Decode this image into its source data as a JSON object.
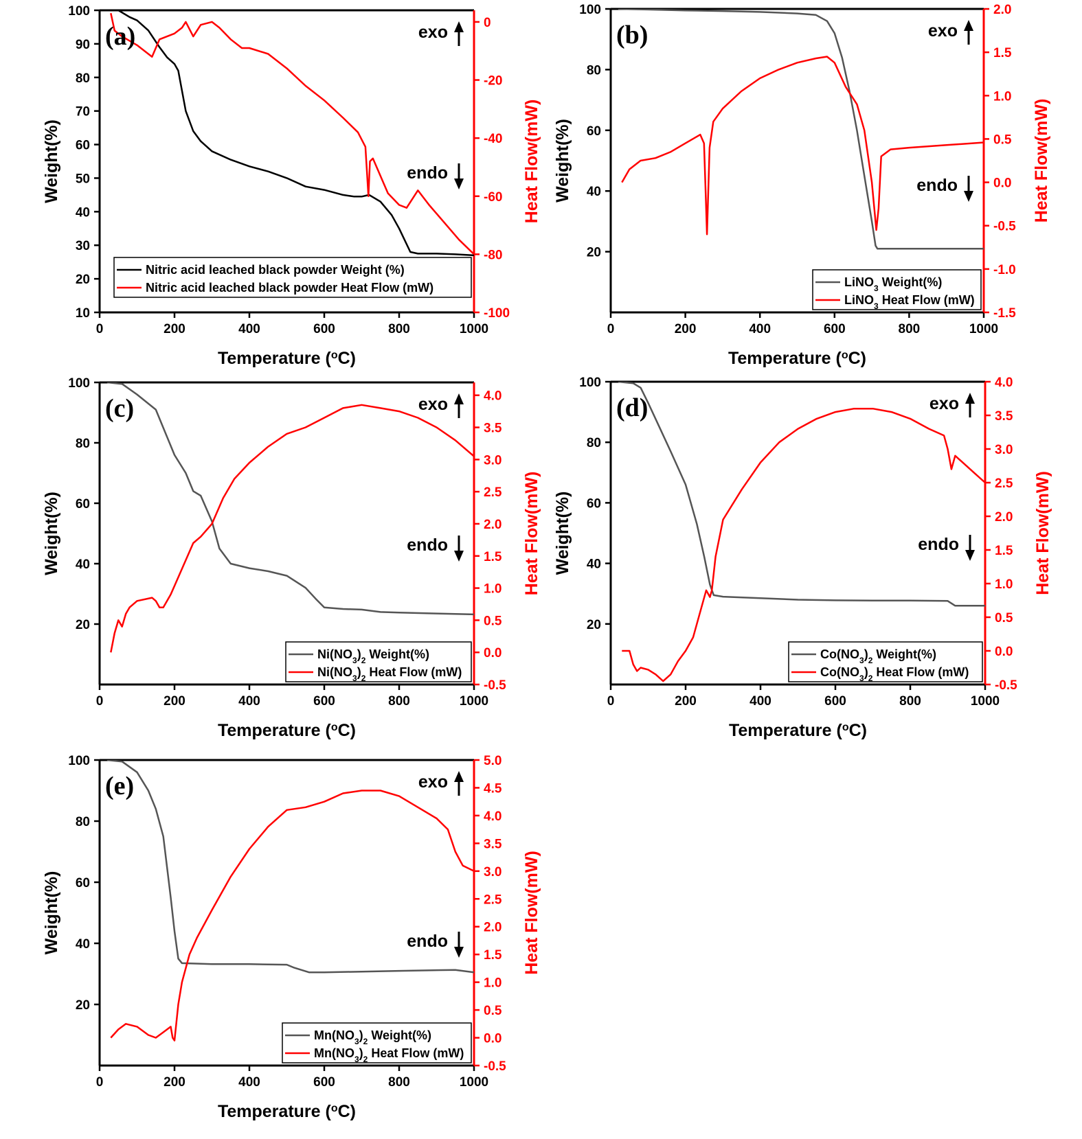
{
  "chart_data": [
    {
      "type": "line",
      "panel_label": "(a)",
      "xlabel": "Temperature (°C)",
      "ylabel": "Weight(%)",
      "y2label": "Heat Flow(mW)",
      "xlim": [
        0,
        1000
      ],
      "ylim": [
        10,
        100
      ],
      "y2lim": [
        -100,
        4
      ],
      "xticks": [
        0,
        200,
        400,
        600,
        800,
        1000
      ],
      "yticks": [
        10,
        20,
        30,
        40,
        50,
        60,
        70,
        80,
        90,
        100
      ],
      "y2ticks": [
        0,
        -20,
        -40,
        -60,
        -80,
        -100
      ],
      "annotations": [
        "exo",
        "endo"
      ],
      "legend_position": "bottom-right",
      "series": [
        {
          "name": "Nitric acid leached black powder Weight (%)",
          "axis": "left",
          "color": "#000000",
          "x": [
            30,
            50,
            80,
            100,
            130,
            160,
            180,
            200,
            210,
            230,
            250,
            270,
            300,
            350,
            400,
            450,
            500,
            550,
            600,
            650,
            680,
            700,
            720,
            750,
            780,
            800,
            830,
            850,
            900,
            950,
            1000
          ],
          "y": [
            100,
            100,
            98,
            97,
            94,
            89,
            86,
            84,
            82,
            70,
            64,
            61,
            58,
            55.5,
            53.5,
            52,
            50,
            47.5,
            46.5,
            45,
            44.5,
            44.5,
            45,
            43,
            39,
            35,
            28,
            27.5,
            27.5,
            27.3,
            27
          ]
        },
        {
          "name": "Nitric acid leached black powder Heat Flow (mW)",
          "axis": "right",
          "color": "#ff0000",
          "x": [
            30,
            40,
            60,
            100,
            140,
            160,
            200,
            220,
            230,
            250,
            270,
            300,
            320,
            350,
            380,
            400,
            450,
            500,
            550,
            600,
            650,
            690,
            710,
            718,
            722,
            730,
            750,
            770,
            800,
            820,
            850,
            880,
            920,
            960,
            1000
          ],
          "y": [
            3,
            -3,
            -5,
            -8,
            -12,
            -6,
            -4,
            -2,
            0,
            -5,
            -1,
            0,
            -2,
            -6,
            -9,
            -9,
            -11,
            -16,
            -22,
            -27,
            -33,
            -38,
            -43,
            -60,
            -48,
            -47,
            -53,
            -59,
            -63,
            -64,
            -58,
            -63,
            -69,
            -75,
            -80
          ]
        }
      ]
    },
    {
      "type": "line",
      "panel_label": "(b)",
      "xlabel": "Temperature (°C)",
      "ylabel": "Weight(%)",
      "y2label": "Heat Flow(mW)",
      "xlim": [
        0,
        1000
      ],
      "ylim": [
        0,
        100
      ],
      "y2lim": [
        -1.5,
        2.0
      ],
      "xticks": [
        0,
        200,
        400,
        600,
        800,
        1000
      ],
      "yticks": [
        20,
        40,
        60,
        80,
        100
      ],
      "y2ticks": [
        -1.5,
        -1.0,
        -0.5,
        0.0,
        0.5,
        1.0,
        1.5,
        2.0
      ],
      "annotations": [
        "exo",
        "endo"
      ],
      "legend_position": "bottom-right",
      "series": [
        {
          "name": "LiNO3 Weight(%)",
          "name_main": "LiNO",
          "name_sub": "3",
          "name_tail": " Weight(%)",
          "axis": "left",
          "color": "#555555",
          "x": [
            20,
            100,
            200,
            300,
            400,
            500,
            550,
            580,
            600,
            620,
            640,
            660,
            680,
            700,
            710,
            715,
            720,
            800,
            900,
            1000
          ],
          "y": [
            100,
            99.8,
            99.5,
            99.3,
            99,
            98.5,
            98,
            96,
            92,
            84,
            73,
            60,
            45,
            30,
            22,
            21,
            21,
            21,
            21,
            21
          ]
        },
        {
          "name": "LiNO3 Heat Flow (mW)",
          "name_main": "LiNO",
          "name_sub": "3",
          "name_tail": " Heat Flow (mW)",
          "axis": "right",
          "color": "#ff0000",
          "x": [
            30,
            50,
            80,
            120,
            160,
            200,
            240,
            250,
            255,
            258,
            265,
            275,
            300,
            350,
            400,
            450,
            500,
            550,
            580,
            600,
            630,
            660,
            680,
            700,
            712,
            718,
            725,
            750,
            800,
            900,
            1000
          ],
          "y": [
            0,
            0.15,
            0.25,
            0.28,
            0.35,
            0.45,
            0.55,
            0.45,
            -0.2,
            -0.6,
            0.4,
            0.7,
            0.85,
            1.05,
            1.2,
            1.3,
            1.38,
            1.43,
            1.45,
            1.38,
            1.1,
            0.9,
            0.6,
            0.0,
            -0.55,
            -0.3,
            0.3,
            0.38,
            0.4,
            0.43,
            0.46
          ]
        }
      ]
    },
    {
      "type": "line",
      "panel_label": "(c)",
      "xlabel": "Temperature (°C)",
      "ylabel": "Weight(%)",
      "y2label": "Heat Flow(mW)",
      "xlim": [
        0,
        1000
      ],
      "ylim": [
        0,
        100
      ],
      "y2lim": [
        -0.5,
        4.2
      ],
      "xticks": [
        0,
        200,
        400,
        600,
        800,
        1000
      ],
      "yticks": [
        20,
        40,
        60,
        80,
        100
      ],
      "y2ticks": [
        -0.5,
        0.0,
        0.5,
        1.0,
        1.5,
        2.0,
        2.5,
        3.0,
        3.5,
        4.0
      ],
      "annotations": [
        "exo",
        "endo"
      ],
      "legend_position": "bottom-right",
      "series": [
        {
          "name": "Ni(NO3)2 Weight(%)",
          "name_main": "Ni(NO",
          "name_sub": "3",
          "name_mid": ")",
          "name_sub2": "2",
          "name_tail": " Weight(%)",
          "axis": "left",
          "color": "#555555",
          "x": [
            20,
            60,
            100,
            150,
            180,
            200,
            230,
            250,
            270,
            300,
            320,
            350,
            400,
            450,
            500,
            550,
            580,
            600,
            650,
            700,
            750,
            800,
            900,
            1000
          ],
          "y": [
            100,
            99.5,
            96,
            91,
            82,
            76,
            70,
            64,
            62.5,
            54,
            45,
            40,
            38.5,
            37.5,
            36,
            32,
            28,
            25.5,
            25,
            24.8,
            24,
            23.8,
            23.5,
            23.2
          ]
        },
        {
          "name": "Ni(NO3)2 Heat Flow (mW)",
          "name_main": "Ni(NO",
          "name_sub": "3",
          "name_mid": ")",
          "name_sub2": "2",
          "name_tail": " Heat Flow (mW)",
          "axis": "right",
          "color": "#ff0000",
          "x": [
            30,
            40,
            50,
            60,
            70,
            80,
            100,
            140,
            150,
            160,
            170,
            190,
            220,
            250,
            270,
            300,
            330,
            360,
            400,
            450,
            500,
            550,
            600,
            650,
            700,
            750,
            800,
            850,
            900,
            950,
            1000
          ],
          "y": [
            0.0,
            0.3,
            0.5,
            0.4,
            0.6,
            0.7,
            0.8,
            0.85,
            0.8,
            0.7,
            0.7,
            0.9,
            1.3,
            1.7,
            1.8,
            2.0,
            2.4,
            2.7,
            2.95,
            3.2,
            3.4,
            3.5,
            3.65,
            3.8,
            3.85,
            3.8,
            3.75,
            3.65,
            3.5,
            3.3,
            3.05
          ]
        }
      ]
    },
    {
      "type": "line",
      "panel_label": "(d)",
      "xlabel": "Temperature (°C)",
      "ylabel": "Weight(%)",
      "y2label": "Heat Flow(mW)",
      "xlim": [
        0,
        1000
      ],
      "ylim": [
        0,
        100
      ],
      "y2lim": [
        -0.5,
        4.0
      ],
      "xticks": [
        0,
        200,
        400,
        600,
        800,
        1000
      ],
      "yticks": [
        20,
        40,
        60,
        80,
        100
      ],
      "y2ticks": [
        -0.5,
        0.0,
        0.5,
        1.0,
        1.5,
        2.0,
        2.5,
        3.0,
        3.5,
        4.0
      ],
      "annotations": [
        "exo",
        "endo"
      ],
      "legend_position": "bottom-right",
      "series": [
        {
          "name": "Co(NO3)2 Weight(%)",
          "name_main": "Co(NO",
          "name_sub": "3",
          "name_mid": ")",
          "name_sub2": "2",
          "name_tail": " Weight(%)",
          "axis": "left",
          "color": "#555555",
          "x": [
            20,
            60,
            80,
            100,
            130,
            160,
            200,
            230,
            250,
            265,
            275,
            300,
            400,
            500,
            600,
            700,
            800,
            900,
            920,
            950,
            1000
          ],
          "y": [
            100,
            99.5,
            98,
            93,
            85,
            77,
            66,
            53,
            42,
            33,
            29.5,
            29,
            28.5,
            28,
            27.8,
            27.7,
            27.7,
            27.6,
            26,
            26,
            26
          ]
        },
        {
          "name": "Co(NO3)2 Heat Flow (mW)",
          "name_main": "Co(NO",
          "name_sub": "3",
          "name_mid": ")",
          "name_sub2": "2",
          "name_tail": " Heat Flow (mW)",
          "axis": "right",
          "color": "#ff0000",
          "x": [
            30,
            50,
            60,
            70,
            80,
            100,
            120,
            140,
            160,
            180,
            200,
            220,
            240,
            255,
            265,
            270,
            280,
            300,
            350,
            400,
            450,
            500,
            550,
            600,
            650,
            700,
            750,
            800,
            850,
            890,
            900,
            910,
            920,
            940,
            970,
            1000
          ],
          "y": [
            0.0,
            0.0,
            -0.2,
            -0.3,
            -0.25,
            -0.28,
            -0.35,
            -0.45,
            -0.35,
            -0.15,
            0.0,
            0.2,
            0.6,
            0.9,
            0.8,
            0.9,
            1.4,
            1.95,
            2.4,
            2.8,
            3.1,
            3.3,
            3.45,
            3.55,
            3.6,
            3.6,
            3.55,
            3.45,
            3.3,
            3.2,
            3.0,
            2.7,
            2.9,
            2.8,
            2.65,
            2.5
          ]
        }
      ]
    },
    {
      "type": "line",
      "panel_label": "(e)",
      "xlabel": "Temperature (°C)",
      "ylabel": "Weight(%)",
      "y2label": "Heat Flow(mW)",
      "xlim": [
        0,
        1000
      ],
      "ylim": [
        0,
        100
      ],
      "y2lim": [
        -0.5,
        5.0
      ],
      "xticks": [
        0,
        200,
        400,
        600,
        800,
        1000
      ],
      "yticks": [
        20,
        40,
        60,
        80,
        100
      ],
      "y2ticks": [
        -0.5,
        0.0,
        0.5,
        1.0,
        1.5,
        2.0,
        2.5,
        3.0,
        3.5,
        4.0,
        4.5,
        5.0
      ],
      "annotations": [
        "exo",
        "endo"
      ],
      "legend_position": "bottom-right",
      "series": [
        {
          "name": "Mn(NO3)2 Weight(%)",
          "name_main": "Mn(NO",
          "name_sub": "3",
          "name_mid": ")",
          "name_sub2": "2",
          "name_tail": " Weight(%)",
          "axis": "left",
          "color": "#555555",
          "x": [
            20,
            60,
            100,
            130,
            150,
            170,
            180,
            190,
            200,
            210,
            220,
            300,
            400,
            500,
            520,
            560,
            600,
            800,
            950,
            1000
          ],
          "y": [
            100,
            99.5,
            96,
            90,
            84,
            75,
            65,
            55,
            44,
            35,
            33.5,
            33.2,
            33.2,
            33,
            32,
            30.5,
            30.5,
            31,
            31.3,
            30.5
          ]
        },
        {
          "name": "Mn(NO3)2 Heat Flow (mW)",
          "name_main": "Mn(NO",
          "name_sub": "3",
          "name_mid": ")",
          "name_sub2": "2",
          "name_tail": " Heat Flow (mW)",
          "axis": "right",
          "color": "#ff0000",
          "x": [
            30,
            50,
            70,
            100,
            130,
            150,
            170,
            190,
            195,
            200,
            210,
            220,
            240,
            260,
            300,
            350,
            400,
            450,
            500,
            550,
            600,
            650,
            700,
            750,
            800,
            850,
            900,
            930,
            950,
            970,
            1000
          ],
          "y": [
            0.0,
            0.15,
            0.25,
            0.2,
            0.05,
            0.0,
            0.1,
            0.2,
            0.0,
            -0.05,
            0.6,
            1.0,
            1.5,
            1.8,
            2.3,
            2.9,
            3.4,
            3.8,
            4.1,
            4.15,
            4.25,
            4.4,
            4.45,
            4.45,
            4.35,
            4.15,
            3.95,
            3.75,
            3.35,
            3.1,
            3.0
          ]
        }
      ]
    }
  ]
}
